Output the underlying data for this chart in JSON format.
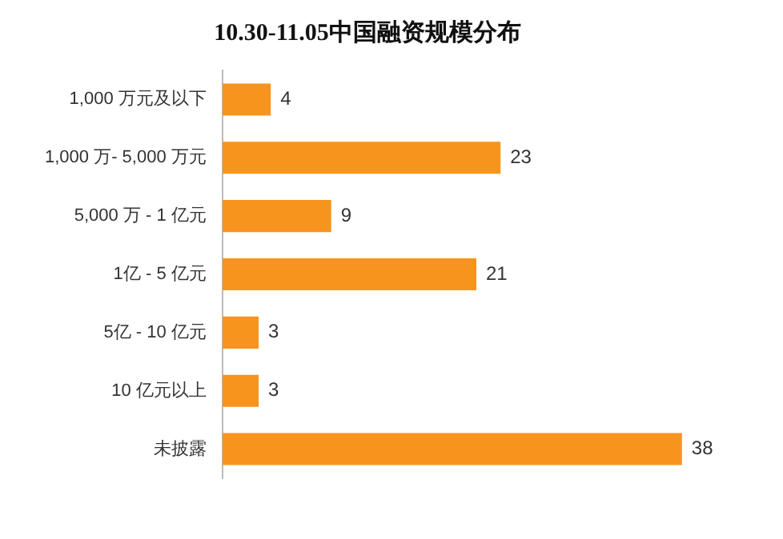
{
  "chart_data": {
    "type": "bar",
    "orientation": "horizontal",
    "title": "10.30-11.05中国融资规模分布",
    "categories": [
      "1,000 万元及以下",
      "1,000 万- 5,000 万元",
      "5,000 万 - 1 亿元",
      "1亿 - 5 亿元",
      "5亿 - 10 亿元",
      "10 亿元以上",
      "未披露"
    ],
    "values": [
      4,
      23,
      9,
      21,
      3,
      3,
      38
    ],
    "color": "#f7941d",
    "data_labels": true,
    "legend": false
  }
}
